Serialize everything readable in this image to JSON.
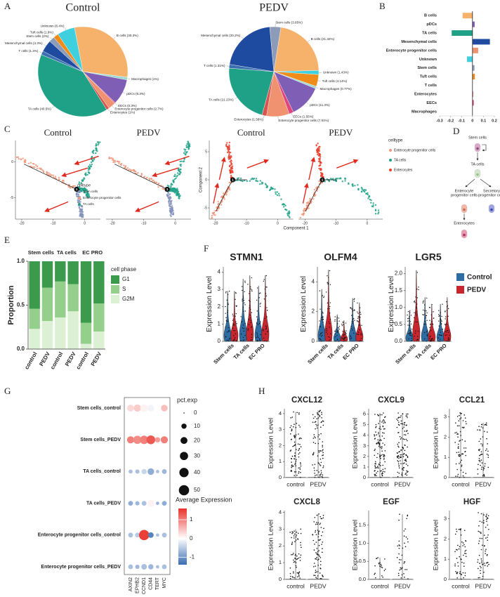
{
  "panel_labels": [
    "A",
    "B",
    "C",
    "D",
    "E",
    "F",
    "G",
    "H"
  ],
  "diagram": {
    "nodes": [
      [
        "Stem cells"
      ],
      [
        "TA cells"
      ],
      [
        "Enterocyte",
        "progenitor cells"
      ],
      [
        "Secretory",
        "progenitor cells"
      ],
      [
        "Enterocytes"
      ]
    ]
  },
  "chart_data": [
    {
      "type": "pie",
      "title": "Control",
      "value_labels": [
        "B cells (30.3%)",
        "Macrophages (1%)",
        "pDCs (9.3%)",
        "EECs (0.3%)",
        "Enterocyte progenitor cells (2.7%)",
        "Enterocytes (1%)",
        "TA cells (40.5%)",
        "T cells (1.4%)",
        "Mesenchymal cells (4.3%)",
        "Stem cells (2%)",
        "Tuft cells (1.9%)",
        "Unknown (6.4%)"
      ],
      "values": [
        30.3,
        1,
        9.3,
        0.3,
        2.7,
        1,
        40.5,
        1.4,
        4.3,
        2,
        1.9,
        6.4
      ],
      "colors": [
        "#f6b26b",
        "#9fd8cf",
        "#7e5fb5",
        "#e0457b",
        "#f0916f",
        "#d9534f",
        "#1fa187",
        "#3a6fb0",
        "#1e4aa0",
        "#8c9bb8",
        "#f08c1a",
        "#3fd0df"
      ]
    },
    {
      "type": "pie",
      "title": "PEDV",
      "value_labels": [
        "B cells (21.32%)",
        "Unknown (1.43%)",
        "Tuft cells (4.14%)",
        "Macrophages (0.77%)",
        "pDCs (11.3%)",
        "EECs (1.55%)",
        "Enterocyte progenitor cells (7.91%)",
        "Enterocytes (1.58%)",
        "TA cells (21.23%)",
        "T cells (1.31%)",
        "Mesenchymal cells (20.2%)",
        "Stem cells (3.85%)"
      ],
      "values": [
        21.32,
        1.43,
        4.14,
        0.77,
        11.3,
        1.55,
        7.91,
        1.58,
        21.23,
        1.31,
        20.2,
        3.85
      ],
      "colors": [
        "#f6b26b",
        "#3fd0df",
        "#f08c1a",
        "#9fd8cf",
        "#7e5fb5",
        "#e0457b",
        "#f0916f",
        "#d9534f",
        "#1fa187",
        "#3a6fb0",
        "#1e4aa0",
        "#8c9bb8"
      ]
    },
    {
      "type": "hbar",
      "categories": [
        "B cells",
        "pDCs",
        "TA cells",
        "Mesenchymal cells",
        "Enterocyte progenitor cells",
        "Unknown",
        "Stem cells",
        "Tuft cells",
        "T cells",
        "Enterocytes",
        "EECs",
        "Macrophages"
      ],
      "values": [
        -0.09,
        0.02,
        -0.19,
        0.159,
        0.052,
        -0.05,
        0.018,
        0.022,
        -0.001,
        0.006,
        0.012,
        -0.002
      ],
      "colors": [
        "#f6b26b",
        "#7e5fb5",
        "#1fa187",
        "#1e4aa0",
        "#f0916f",
        "#3fd0df",
        "#8c9bb8",
        "#f08c1a",
        "#3a6fb0",
        "#d9534f",
        "#e0457b",
        "#9fd8cf"
      ],
      "xlim": [
        -0.3,
        0.2
      ],
      "xticks": [
        -0.3,
        -0.2,
        -0.1,
        0,
        0.1,
        0.2
      ]
    },
    {
      "type": "trajectory",
      "titles": [
        "Control",
        "PEDV"
      ],
      "branch_point": "1",
      "legend_title": "celltype",
      "legend": [
        "Stem cells",
        "Enterocyte progenitor cells",
        "TA cells"
      ],
      "colors": [
        "#8090b8",
        "#f0967a",
        "#1fa187"
      ],
      "xlim": [
        -22,
        5
      ],
      "xticks": [
        -20,
        -10,
        0
      ],
      "ylim": [
        -8,
        3
      ],
      "yticks": [
        -5,
        0
      ]
    },
    {
      "type": "trajectory",
      "titles": [
        "Control",
        "PEDV"
      ],
      "branch_point": "1",
      "xlabel": "Component 1",
      "ylabel": "Component 2",
      "legend_title": "celltype",
      "legend": [
        "Enterocyte progenitor cells",
        "TA cells",
        "Enterocytes"
      ],
      "colors": [
        "#f0967a",
        "#1fa187",
        "#e8402e"
      ],
      "xlim": [
        -22,
        5
      ],
      "xticks": [
        -20,
        -10,
        0
      ],
      "ylim": [
        -7,
        7
      ],
      "yticks": [
        -5,
        0,
        5
      ]
    },
    {
      "type": "stacked_bar",
      "groups": [
        "Stem cells",
        "TA cells",
        "EC PRO"
      ],
      "categories": [
        "control",
        "PEDV",
        "control",
        "PEDV",
        "control",
        "PEDV"
      ],
      "ylabel": "Proportion",
      "legend_title": "cell phase",
      "series": [
        {
          "name": "G1",
          "color": "#3c9a4c",
          "values": [
            0.54,
            0.3,
            0.23,
            0.26,
            0.7,
            0.48
          ]
        },
        {
          "name": "S",
          "color": "#94d08c",
          "values": [
            0.23,
            0.38,
            0.41,
            0.31,
            0.24,
            0.32
          ]
        },
        {
          "name": "G2M",
          "color": "#dcf1d4",
          "values": [
            0.23,
            0.32,
            0.36,
            0.43,
            0.06,
            0.2
          ]
        }
      ],
      "ylim": [
        0,
        1
      ],
      "yticks": [
        {
          "value": 0,
          "label": "0.0"
        },
        0.5,
        {
          "value": 1,
          "label": "1.0"
        }
      ]
    },
    {
      "type": "violin",
      "title": "STMN1",
      "ylabel": "Expression Level",
      "categories": [
        "Stem cells",
        "TA cells",
        "EC PRO"
      ],
      "series": [
        {
          "color": "#2e6da4",
          "values": [
            2.9,
            3.6,
            3.2
          ]
        },
        {
          "color": "#c8262e",
          "values": [
            2.9,
            3.8,
            3.8
          ]
        }
      ],
      "ylim": [
        0,
        4.3
      ],
      "yticks": [
        0,
        1,
        2,
        3,
        4
      ]
    },
    {
      "type": "violin",
      "title": "OLFM4",
      "ylabel": "Expression Level",
      "categories": [
        "Stem cells",
        "TA cells",
        "EC PRO"
      ],
      "series": [
        {
          "color": "#2e6da4",
          "values": [
            3.5,
            1.8,
            2.9
          ]
        },
        {
          "color": "#c8262e",
          "values": [
            4.8,
            1.4,
            2.6
          ]
        }
      ],
      "ylim": [
        0,
        5
      ],
      "yticks": [
        0,
        2,
        4
      ]
    },
    {
      "type": "violin",
      "title": "LGR5",
      "ylabel": "Expression Level",
      "categories": [
        "Stem cells",
        "TA cells",
        "EC PRO"
      ],
      "series": [
        {
          "name": "Control",
          "color": "#2e6da4",
          "values": [
            0.9,
            1.3,
            1.1
          ]
        },
        {
          "name": "PEDV",
          "color": "#c8262e",
          "values": [
            2.1,
            1.1,
            1.3
          ]
        }
      ],
      "ylim": [
        0,
        2.2
      ],
      "yticks": [
        {
          "value": 0,
          "label": "0.0"
        },
        0.5,
        {
          "value": 1,
          "label": "1.0"
        },
        1.5,
        {
          "value": 2,
          "label": "2.0"
        }
      ]
    },
    {
      "type": "dot",
      "rows": [
        "Stem cells_control",
        "Stem cells_PEDV",
        "TA cells_control",
        "TA cells_PEDV",
        "Enterocyte progenitor cells_control",
        "Enterocyte progenitor cells_PEDV"
      ],
      "columns": [
        "AXIN2",
        "EPHB2",
        "CCND1",
        "CD44",
        "TERT",
        "MYC"
      ],
      "pct": [
        [
          20,
          22,
          25,
          18,
          5,
          18
        ],
        [
          22,
          30,
          32,
          35,
          10,
          22
        ],
        [
          5,
          6,
          10,
          18,
          3,
          8
        ],
        [
          8,
          6,
          8,
          20,
          3,
          8
        ],
        [
          8,
          8,
          50,
          12,
          3,
          8
        ],
        [
          8,
          6,
          12,
          10,
          3,
          8
        ]
      ],
      "avg": [
        [
          0.3,
          0.4,
          0.1,
          -0.1,
          0.0,
          0.5
        ],
        [
          1.0,
          0.9,
          1.0,
          1.3,
          0.8,
          1.0
        ],
        [
          -0.6,
          -0.6,
          -0.4,
          -0.8,
          -0.6,
          -0.7
        ],
        [
          -0.8,
          -0.7,
          -0.6,
          0.1,
          -0.7,
          -0.8
        ],
        [
          -0.6,
          -0.5,
          1.5,
          -1.2,
          -0.6,
          -0.6
        ],
        [
          -0.6,
          -0.7,
          -0.6,
          -0.7,
          -0.6,
          -0.6
        ]
      ],
      "size_title": "pct.exp",
      "size_ticks": [
        0,
        10,
        20,
        30,
        40,
        50
      ],
      "color_title": "Average Expression",
      "clim": [
        -1.4,
        1.6
      ],
      "color_ticks": [
        -1,
        0,
        1
      ],
      "colors": [
        "#3b6db3",
        "#ffffff",
        "#e8322a"
      ]
    },
    {
      "type": "strip",
      "title": "CXCL12",
      "ylabel": "Expression Level",
      "categories": [
        "control",
        "PEDV"
      ],
      "values": [
        4.1,
        4.2
      ],
      "color": "#111111",
      "ylim": [
        0,
        4.3
      ],
      "yticks": [
        0,
        1,
        2,
        3,
        4
      ]
    },
    {
      "type": "strip",
      "title": "CXCL9",
      "ylabel": "Expression Level",
      "categories": [
        "control",
        "PEDV"
      ],
      "values": [
        6.1,
        6.1
      ],
      "color": "#111111",
      "ylim": [
        0,
        6.5
      ],
      "yticks": [
        0,
        1,
        2,
        3,
        4,
        5,
        6
      ]
    },
    {
      "type": "strip",
      "title": "CCL21",
      "ylabel": "Expression Level",
      "categories": [
        "control",
        "PEDV"
      ],
      "values": [
        3.2,
        2.7
      ],
      "color": "#111111",
      "ylim": [
        0,
        3.4
      ],
      "yticks": [
        0,
        1,
        2,
        3
      ]
    },
    {
      "type": "strip",
      "title": "CXCL8",
      "ylabel": "Expression Level",
      "categories": [
        "control",
        "PEDV"
      ],
      "values": [
        3.0,
        3.9
      ],
      "color": "#111111",
      "ylim": [
        0,
        4.1
      ],
      "yticks": [
        0,
        1,
        2,
        3,
        4
      ]
    },
    {
      "type": "strip",
      "title": "EGF",
      "ylabel": "Expression Level",
      "categories": [
        "control",
        "PEDV"
      ],
      "values": [
        0.6,
        1.8
      ],
      "color": "#111111",
      "ylim": [
        0,
        1.9
      ],
      "yticks": [
        {
          "value": 0,
          "label": "0.0"
        },
        0.5,
        {
          "value": 1,
          "label": "1.0"
        },
        1.5
      ]
    },
    {
      "type": "strip",
      "title": "HGF",
      "ylabel": "Expression Level",
      "categories": [
        "control",
        "PEDV"
      ],
      "values": [
        2.5,
        3.3
      ],
      "color": "#111111",
      "ylim": [
        0,
        3.4
      ],
      "yticks": [
        0,
        1,
        2,
        3
      ]
    }
  ]
}
